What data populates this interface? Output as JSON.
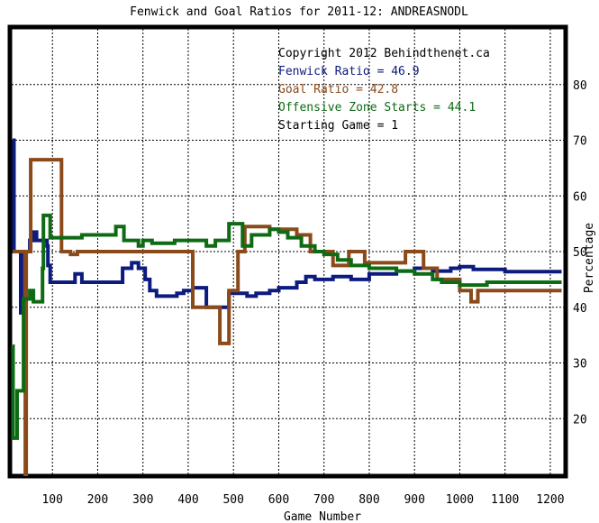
{
  "chart_data": {
    "type": "line",
    "title": "Fenwick and Goal Ratios for 2011-12: ANDREASNODL",
    "xlabel": "Game Number",
    "ylabel": "Percentage",
    "xlim": [
      10,
      1230
    ],
    "ylim": [
      10,
      90
    ],
    "x_ticks": [
      100,
      200,
      300,
      400,
      500,
      600,
      700,
      800,
      900,
      1000,
      1100,
      1200
    ],
    "y_ticks": [
      20,
      30,
      40,
      50,
      60,
      70,
      80
    ],
    "grid": true,
    "legend_position": "top-right",
    "legend": [
      {
        "text": "Copyright 2012 Behindthenet.ca",
        "color": "#000000"
      },
      {
        "text": "Fenwick Ratio = 46.9",
        "color": "#0d1a7e"
      },
      {
        "text": "Goal Ratio = 42.8",
        "color": "#8b4a1a"
      },
      {
        "text": "Offensive Zone Starts = 44.1",
        "color": "#0e6b14"
      },
      {
        "text": "Starting Game = 1",
        "color": "#000000"
      }
    ],
    "series": [
      {
        "name": "Fenwick Ratio",
        "color": "#0d1a7e",
        "points": [
          [
            12,
            70
          ],
          [
            15,
            70
          ],
          [
            15,
            50
          ],
          [
            30,
            50
          ],
          [
            30,
            39
          ],
          [
            38,
            39
          ],
          [
            38,
            50
          ],
          [
            50,
            50
          ],
          [
            50,
            52
          ],
          [
            58,
            52
          ],
          [
            58,
            53.5
          ],
          [
            65,
            53.5
          ],
          [
            65,
            52
          ],
          [
            88,
            52
          ],
          [
            88,
            51
          ],
          [
            90,
            51
          ],
          [
            90,
            47.5
          ],
          [
            95,
            47.5
          ],
          [
            95,
            44.5
          ],
          [
            140,
            44.5
          ],
          [
            140,
            44.5
          ],
          [
            150,
            44.5
          ],
          [
            150,
            46
          ],
          [
            165,
            46
          ],
          [
            165,
            44.5
          ],
          [
            255,
            44.5
          ],
          [
            255,
            47
          ],
          [
            275,
            47
          ],
          [
            275,
            48
          ],
          [
            290,
            48
          ],
          [
            290,
            47
          ],
          [
            305,
            47
          ],
          [
            305,
            45
          ],
          [
            315,
            45
          ],
          [
            315,
            43
          ],
          [
            330,
            43
          ],
          [
            330,
            42
          ],
          [
            375,
            42
          ],
          [
            375,
            42.5
          ],
          [
            390,
            42.5
          ],
          [
            390,
            43
          ],
          [
            410,
            43
          ],
          [
            410,
            43.5
          ],
          [
            440,
            43.5
          ],
          [
            440,
            40
          ],
          [
            490,
            40
          ],
          [
            490,
            42.5
          ],
          [
            530,
            42.5
          ],
          [
            530,
            42
          ],
          [
            550,
            42
          ],
          [
            550,
            42.5
          ],
          [
            580,
            42.5
          ],
          [
            580,
            43
          ],
          [
            600,
            43
          ],
          [
            600,
            43.5
          ],
          [
            640,
            43.5
          ],
          [
            640,
            44.5
          ],
          [
            660,
            44.5
          ],
          [
            660,
            45.5
          ],
          [
            680,
            45.5
          ],
          [
            680,
            45
          ],
          [
            720,
            45
          ],
          [
            720,
            45.5
          ],
          [
            760,
            45.5
          ],
          [
            760,
            45
          ],
          [
            800,
            45
          ],
          [
            800,
            46
          ],
          [
            860,
            46
          ],
          [
            860,
            46.5
          ],
          [
            900,
            46.5
          ],
          [
            900,
            47
          ],
          [
            940,
            47
          ],
          [
            940,
            46.5
          ],
          [
            980,
            46.5
          ],
          [
            980,
            47
          ],
          [
            1000,
            47
          ],
          [
            1000,
            47.3
          ],
          [
            1030,
            47.3
          ],
          [
            1030,
            46.8
          ],
          [
            1100,
            46.8
          ],
          [
            1100,
            46.4
          ],
          [
            1225,
            46.4
          ]
        ]
      },
      {
        "name": "Goal Ratio",
        "color": "#8b4a1a",
        "points": [
          [
            12,
            50
          ],
          [
            40,
            50
          ],
          [
            40,
            10
          ],
          [
            42,
            10
          ],
          [
            42,
            50
          ],
          [
            52,
            50
          ],
          [
            52,
            66.5
          ],
          [
            120,
            66.5
          ],
          [
            120,
            50
          ],
          [
            140,
            50
          ],
          [
            140,
            49.5
          ],
          [
            155,
            49.5
          ],
          [
            155,
            50
          ],
          [
            410,
            50
          ],
          [
            410,
            40
          ],
          [
            470,
            40
          ],
          [
            470,
            33.5
          ],
          [
            490,
            33.5
          ],
          [
            490,
            43
          ],
          [
            510,
            43
          ],
          [
            510,
            50
          ],
          [
            525,
            50
          ],
          [
            525,
            54.5
          ],
          [
            580,
            54.5
          ],
          [
            580,
            54
          ],
          [
            640,
            54
          ],
          [
            640,
            53
          ],
          [
            670,
            53
          ],
          [
            670,
            50
          ],
          [
            720,
            50
          ],
          [
            720,
            47.5
          ],
          [
            755,
            47.5
          ],
          [
            755,
            50
          ],
          [
            790,
            50
          ],
          [
            790,
            48
          ],
          [
            880,
            48
          ],
          [
            880,
            50
          ],
          [
            920,
            50
          ],
          [
            920,
            47
          ],
          [
            950,
            47
          ],
          [
            950,
            45
          ],
          [
            1000,
            45
          ],
          [
            1000,
            43
          ],
          [
            1025,
            43
          ],
          [
            1025,
            41
          ],
          [
            1040,
            41
          ],
          [
            1040,
            43
          ],
          [
            1225,
            43
          ]
        ]
      },
      {
        "name": "Offensive Zone Starts",
        "color": "#0e6b14",
        "points": [
          [
            12,
            33
          ],
          [
            13,
            33
          ],
          [
            13,
            16.5
          ],
          [
            22,
            16.5
          ],
          [
            22,
            25
          ],
          [
            36,
            25
          ],
          [
            36,
            41.5
          ],
          [
            50,
            41.5
          ],
          [
            50,
            43
          ],
          [
            58,
            43
          ],
          [
            58,
            41
          ],
          [
            78,
            41
          ],
          [
            78,
            47
          ],
          [
            80,
            47
          ],
          [
            80,
            56.5
          ],
          [
            95,
            56.5
          ],
          [
            95,
            52.5
          ],
          [
            165,
            52.5
          ],
          [
            165,
            53
          ],
          [
            240,
            53
          ],
          [
            240,
            54.5
          ],
          [
            258,
            54.5
          ],
          [
            258,
            52
          ],
          [
            290,
            52
          ],
          [
            290,
            51
          ],
          [
            300,
            51
          ],
          [
            300,
            52
          ],
          [
            320,
            52
          ],
          [
            320,
            51.5
          ],
          [
            370,
            51.5
          ],
          [
            370,
            52
          ],
          [
            440,
            52
          ],
          [
            440,
            51
          ],
          [
            460,
            51
          ],
          [
            460,
            52
          ],
          [
            490,
            52
          ],
          [
            490,
            55
          ],
          [
            520,
            55
          ],
          [
            520,
            51
          ],
          [
            540,
            51
          ],
          [
            540,
            53
          ],
          [
            580,
            53
          ],
          [
            580,
            54
          ],
          [
            600,
            54
          ],
          [
            600,
            53.5
          ],
          [
            620,
            53.5
          ],
          [
            620,
            52.5
          ],
          [
            650,
            52.5
          ],
          [
            650,
            51
          ],
          [
            680,
            51
          ],
          [
            680,
            50
          ],
          [
            700,
            50
          ],
          [
            700,
            49.5
          ],
          [
            730,
            49.5
          ],
          [
            730,
            48.5
          ],
          [
            760,
            48.5
          ],
          [
            760,
            47.5
          ],
          [
            800,
            47.5
          ],
          [
            800,
            47
          ],
          [
            860,
            47
          ],
          [
            860,
            46.5
          ],
          [
            900,
            46.5
          ],
          [
            900,
            46
          ],
          [
            940,
            46
          ],
          [
            940,
            45
          ],
          [
            960,
            45
          ],
          [
            960,
            44.5
          ],
          [
            1000,
            44.5
          ],
          [
            1000,
            44
          ],
          [
            1060,
            44
          ],
          [
            1060,
            44.5
          ],
          [
            1225,
            44.5
          ]
        ]
      }
    ]
  }
}
